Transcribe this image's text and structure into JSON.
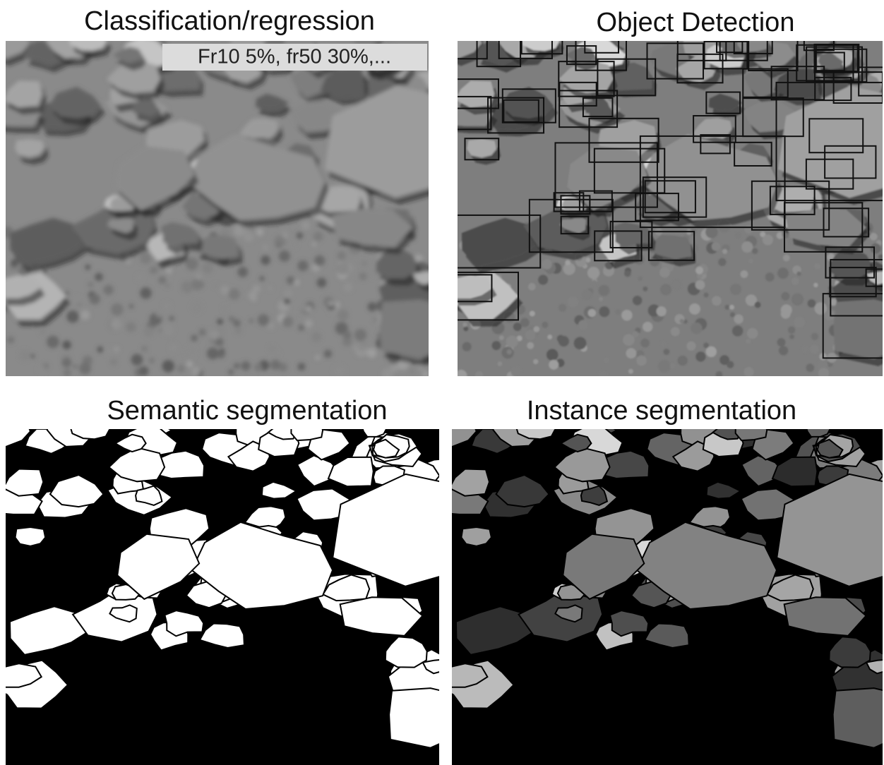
{
  "panels": [
    {
      "title": "Classification/regression",
      "overlay": "Fr10 5%, fr50 30%,..."
    },
    {
      "title": "Object Detection"
    },
    {
      "title": "Semantic segmentation"
    },
    {
      "title": "Instance segmentation"
    }
  ]
}
